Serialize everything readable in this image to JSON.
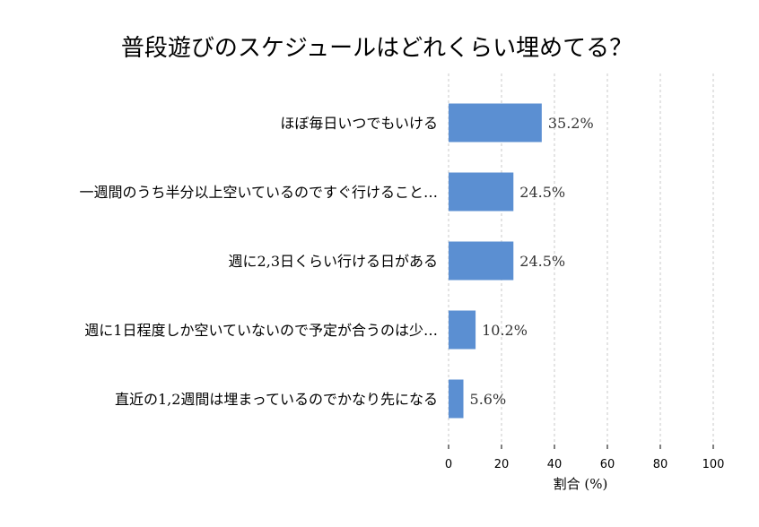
{
  "chart_data": {
    "type": "bar",
    "orientation": "horizontal",
    "title": "普段遊びのスケジュールはどれくらい埋めてる？",
    "xlabel": "割合 (%)",
    "ylabel": "",
    "xlim": [
      0,
      100
    ],
    "xticks": [
      0,
      20,
      40,
      60,
      80,
      100
    ],
    "grid": "vertical dashed",
    "categories": [
      "ほぼ毎日いつでもいける",
      "一週間のうち半分以上空いているのですぐ行けること…",
      "週に2,3日くらい行ける日がある",
      "週に1日程度しか空いていないので予定が合うのは少…",
      "直近の1,2週間は埋まっているのでかなり先になる"
    ],
    "values": [
      35.2,
      24.5,
      24.5,
      10.2,
      5.6
    ],
    "value_labels": [
      "35.2%",
      "24.5%",
      "24.5%",
      "10.2%",
      "5.6%"
    ],
    "bar_color": "#5b8fd2"
  }
}
